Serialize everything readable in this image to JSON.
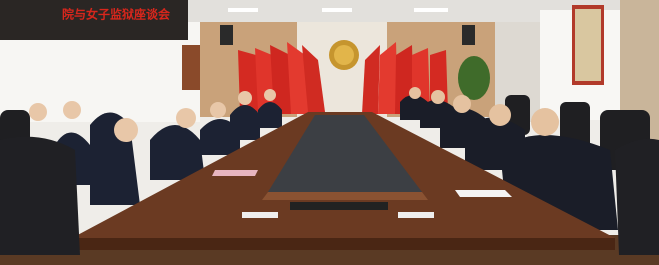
{
  "banner": {
    "text": "院与女子监狱座谈会"
  }
}
